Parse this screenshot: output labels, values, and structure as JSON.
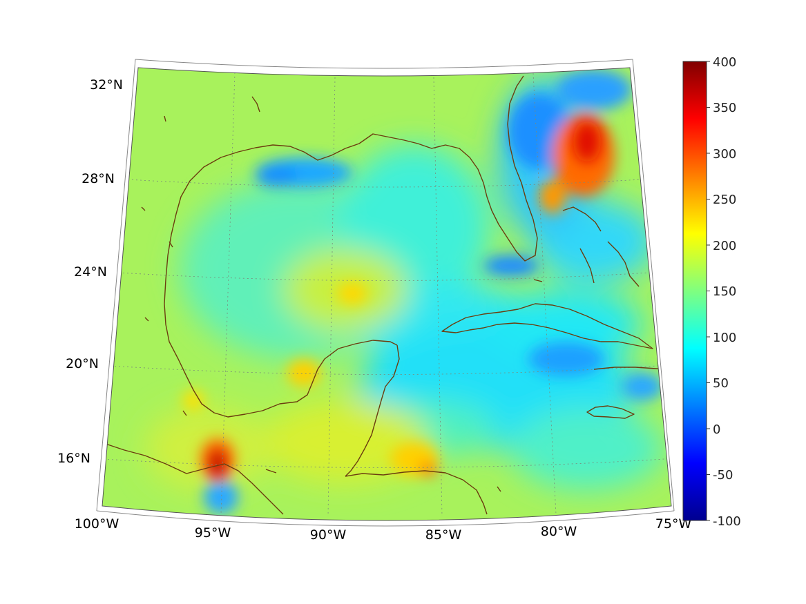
{
  "map": {
    "projection": "conic",
    "region": "Gulf of Mexico and Caribbean",
    "lon_range": [
      -100,
      -75
    ],
    "lat_range": [
      14,
      33
    ],
    "latitude_labels": [
      {
        "value": 32,
        "text": "32°N"
      },
      {
        "value": 28,
        "text": "28°N"
      },
      {
        "value": 24,
        "text": "24°N"
      },
      {
        "value": 20,
        "text": "20°N"
      },
      {
        "value": 16,
        "text": "16°N"
      }
    ],
    "longitude_labels": [
      {
        "value": -100,
        "text": "100°W"
      },
      {
        "value": -95,
        "text": "95°W"
      },
      {
        "value": -90,
        "text": "90°W"
      },
      {
        "value": -85,
        "text": "85°W"
      },
      {
        "value": -80,
        "text": "80°W"
      },
      {
        "value": -75,
        "text": "75°W"
      }
    ],
    "coastline_color": "#6b3d0f",
    "graticule_style": "dotted"
  },
  "colorbar": {
    "colormap": "jet",
    "range": [
      -100,
      400
    ],
    "tick_labels": [
      "400",
      "350",
      "300",
      "250",
      "200",
      "150",
      "100",
      "50",
      "0",
      "-50",
      "-100"
    ]
  },
  "field_features": [
    {
      "lon": -95,
      "lat": 16,
      "value": 390,
      "note": "maximum near Isthmus of Tehuantepec"
    },
    {
      "lon": -78.5,
      "lat": 29,
      "value": 300,
      "note": "high east of Florida"
    },
    {
      "lon": -81,
      "lat": 29.5,
      "value": 40,
      "note": "low off northeast Florida coast"
    },
    {
      "lon": -91,
      "lat": 28.5,
      "value": 80,
      "note": "low off Louisiana coast"
    },
    {
      "lon": -89,
      "lat": 23.5,
      "value": 220
    },
    {
      "lon": -90.5,
      "lat": 19.7,
      "value": 230
    },
    {
      "lon": -85.5,
      "lat": 15.8,
      "value": 260
    },
    {
      "lon": -78,
      "lat": 20.5,
      "value": 70
    }
  ]
}
